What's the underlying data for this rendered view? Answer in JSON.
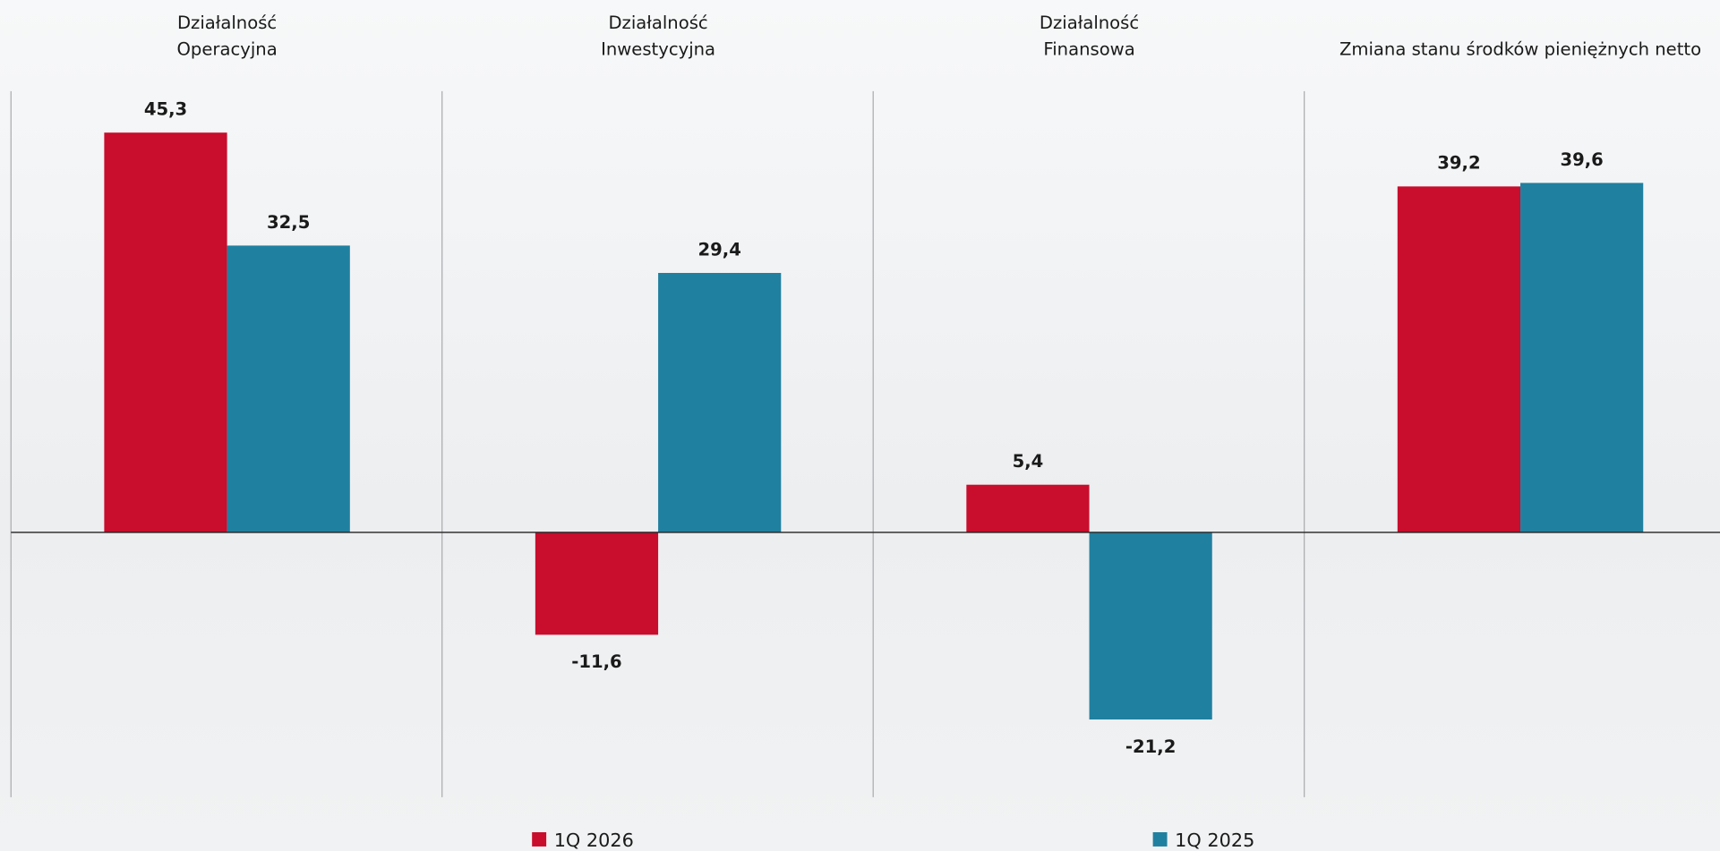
{
  "chart_data": {
    "type": "bar",
    "categories": [
      [
        "Działalność",
        "Operacyjna"
      ],
      [
        "Działalność",
        "Inwestycyjna"
      ],
      [
        "Działalność",
        "Finansowa"
      ],
      [
        "Zmiana stanu środków pieniężnych netto"
      ]
    ],
    "series": [
      {
        "name": "1Q 2026",
        "color": "#c90d2c",
        "values": [
          45.3,
          -11.6,
          5.4,
          39.2
        ],
        "value_labels": [
          "45,3",
          "-11,6",
          "5,4",
          "39,2"
        ]
      },
      {
        "name": "1Q 2025",
        "color": "#2080a0",
        "values": [
          32.5,
          29.4,
          -21.2,
          39.6
        ],
        "value_labels": [
          "32,5",
          "29,4",
          "-21,2",
          "39,6"
        ]
      }
    ],
    "ylim": [
      -30,
      50
    ]
  }
}
